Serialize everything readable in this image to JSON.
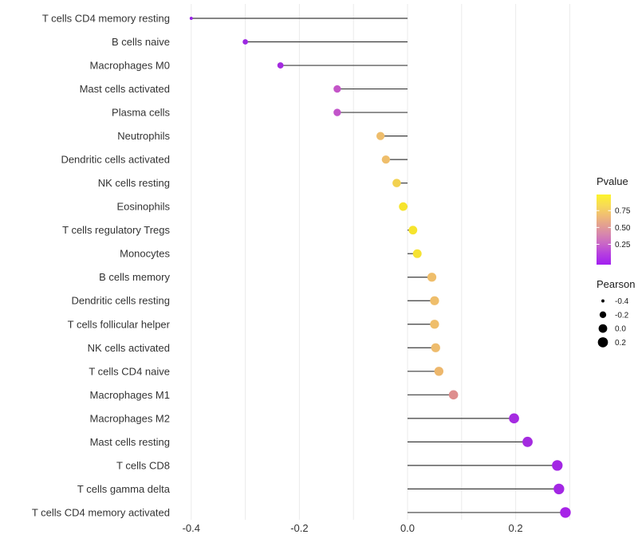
{
  "chart_data": {
    "type": "scatter",
    "subtype": "lollipop",
    "title": "",
    "xlabel": "",
    "ylabel": "",
    "xlim": [
      -0.45,
      0.33
    ],
    "grid": "vertical-only",
    "x_ticks": [
      {
        "value": -0.4,
        "label": "-0.4"
      },
      {
        "value": -0.2,
        "label": "-0.2"
      },
      {
        "value": 0.0,
        "label": "0.0"
      },
      {
        "value": 0.2,
        "label": "0.2"
      }
    ],
    "gridline_values": [
      -0.4,
      -0.3,
      -0.2,
      -0.1,
      0.0,
      0.1,
      0.2,
      0.3
    ],
    "points": [
      {
        "label": "T cells CD4 memory resting",
        "pearson": -0.4,
        "pvalue": 0.06,
        "color": "#9823E6"
      },
      {
        "label": "B cells naive",
        "pearson": -0.3,
        "pvalue": 0.08,
        "color": "#9C28E2"
      },
      {
        "label": "Macrophages M0",
        "pearson": -0.235,
        "pvalue": 0.1,
        "color": "#A42BE0"
      },
      {
        "label": "Mast cells activated",
        "pearson": -0.13,
        "pvalue": 0.31,
        "color": "#C455C8"
      },
      {
        "label": "Plasma cells",
        "pearson": -0.13,
        "pvalue": 0.31,
        "color": "#C254CA"
      },
      {
        "label": "Neutrophils",
        "pearson": -0.05,
        "pvalue": 0.66,
        "color": "#EEBD6C"
      },
      {
        "label": "Dendritic cells activated",
        "pearson": -0.04,
        "pvalue": 0.66,
        "color": "#EFBE6B"
      },
      {
        "label": "NK cells resting",
        "pearson": -0.02,
        "pvalue": 0.81,
        "color": "#F2D14F"
      },
      {
        "label": "Eosinophils",
        "pearson": -0.008,
        "pvalue": 0.93,
        "color": "#F6E42D"
      },
      {
        "label": "T cells regulatory  Tregs",
        "pearson": 0.01,
        "pvalue": 0.93,
        "color": "#F6E42D"
      },
      {
        "label": "Monocytes",
        "pearson": 0.018,
        "pvalue": 0.9,
        "color": "#F5E233"
      },
      {
        "label": "B cells memory",
        "pearson": 0.045,
        "pvalue": 0.66,
        "color": "#EFBE6B"
      },
      {
        "label": "Dendritic cells resting",
        "pearson": 0.05,
        "pvalue": 0.66,
        "color": "#EFBE6B"
      },
      {
        "label": "T cells follicular helper",
        "pearson": 0.05,
        "pvalue": 0.66,
        "color": "#EFBE6B"
      },
      {
        "label": "NK cells activated",
        "pearson": 0.052,
        "pvalue": 0.65,
        "color": "#EEBC6D"
      },
      {
        "label": "T cells CD4 naive",
        "pearson": 0.058,
        "pvalue": 0.62,
        "color": "#EDB76C"
      },
      {
        "label": "Macrophages M1",
        "pearson": 0.085,
        "pvalue": 0.48,
        "color": "#DE8E8E"
      },
      {
        "label": "Macrophages M2",
        "pearson": 0.197,
        "pvalue": 0.1,
        "color": "#A52BE1"
      },
      {
        "label": "Mast cells resting",
        "pearson": 0.222,
        "pvalue": 0.09,
        "color": "#A42BE0"
      },
      {
        "label": "T cells CD8",
        "pearson": 0.277,
        "pvalue": 0.06,
        "color": "#A327E4"
      },
      {
        "label": "T cells gamma delta",
        "pearson": 0.28,
        "pvalue": 0.06,
        "color": "#A327E4"
      },
      {
        "label": "T cells CD4 memory activated",
        "pearson": 0.292,
        "pvalue": 0.04,
        "color": "#A623E7"
      }
    ],
    "legend": {
      "position": "right",
      "pvalue_title": "Pvalue",
      "pvalue_ticks": [
        {
          "label": "0.75",
          "frac_from_top": 0.23
        },
        {
          "label": "0.50",
          "frac_from_top": 0.47
        },
        {
          "label": "0.25",
          "frac_from_top": 0.71
        }
      ],
      "pvalue_gradient_top_to_bottom": [
        {
          "offset": 0.0,
          "color": "#FCF42B"
        },
        {
          "offset": 0.15,
          "color": "#F8DC55"
        },
        {
          "offset": 0.3,
          "color": "#F0BD74"
        },
        {
          "offset": 0.45,
          "color": "#E29D93"
        },
        {
          "offset": 0.57,
          "color": "#D685AE"
        },
        {
          "offset": 0.7,
          "color": "#C967C6"
        },
        {
          "offset": 0.85,
          "color": "#B53EE0"
        },
        {
          "offset": 1.0,
          "color": "#A21FF0"
        }
      ],
      "pearson_title": "Pearson",
      "pearson_sizes": [
        {
          "label": "-0.4",
          "value": -0.4
        },
        {
          "label": "-0.2",
          "value": -0.2
        },
        {
          "label": "0.0",
          "value": 0.0
        },
        {
          "label": "0.2",
          "value": 0.2
        }
      ],
      "size_dot_color": "#000000"
    },
    "style": {
      "gridline_color": "#EBEBEB",
      "stem_color": "#3C3C3C",
      "axis_text_color": "#333333",
      "background": "#FFFFFF"
    }
  }
}
